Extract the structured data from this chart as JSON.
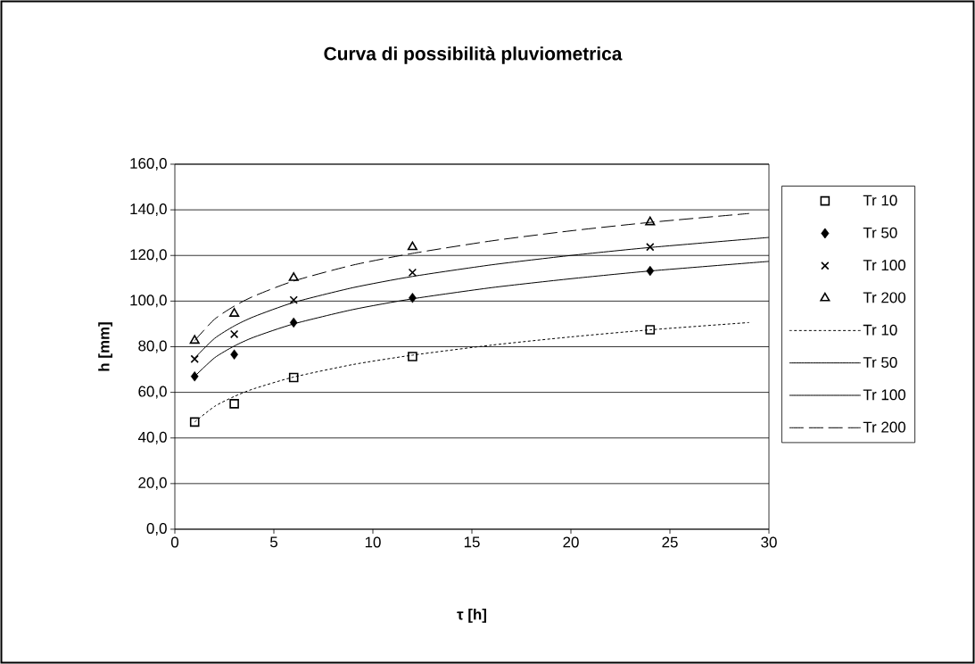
{
  "chart_data": {
    "type": "scatter",
    "title": "Curva di possibilità pluviometrica",
    "xlabel": "τ [h]",
    "ylabel": "h [mm]",
    "xlim": [
      0,
      30
    ],
    "ylim": [
      0,
      160
    ],
    "xticks": [
      0,
      5,
      10,
      15,
      20,
      25,
      30
    ],
    "yticks": [
      {
        "value": 0,
        "label": "0,0"
      },
      {
        "value": 20,
        "label": "20,0"
      },
      {
        "value": 40,
        "label": "40,0"
      },
      {
        "value": 60,
        "label": "60,0"
      },
      {
        "value": 80,
        "label": "80,0"
      },
      {
        "value": 100,
        "label": "100,0"
      },
      {
        "value": 120,
        "label": "120,0"
      },
      {
        "value": 140,
        "label": "140,0"
      },
      {
        "value": 160,
        "label": "160,0"
      }
    ],
    "grid": "y",
    "legend": "right",
    "series": [
      {
        "name": "Tr 10",
        "marker": "square",
        "color": "#000000",
        "x": [
          1,
          3,
          6,
          12,
          24
        ],
        "values": [
          47,
          55,
          66.5,
          75.7,
          87.4
        ]
      },
      {
        "name": "Tr 50",
        "marker": "diamond",
        "color": "#000000",
        "x": [
          1,
          3,
          6,
          12,
          24
        ],
        "values": [
          67,
          76.6,
          90.6,
          101.4,
          113.2
        ]
      },
      {
        "name": "Tr 100",
        "marker": "cross",
        "color": "#000000",
        "x": [
          1,
          3,
          6,
          12,
          24
        ],
        "values": [
          74.6,
          85.5,
          100.5,
          112.5,
          123.7
        ]
      },
      {
        "name": "Tr 200",
        "marker": "triangle",
        "color": "#000000",
        "x": [
          1,
          3,
          6,
          12,
          24
        ],
        "values": [
          82.7,
          94.5,
          110.2,
          123.7,
          134.6
        ]
      },
      {
        "name": "Tr 10",
        "type": "line",
        "line_style": "dotted",
        "color": "#000000",
        "x": [
          1,
          2,
          3,
          4,
          6,
          9,
          12,
          16,
          20,
          24,
          29
        ],
        "values": [
          47,
          53.8,
          58.2,
          61.6,
          66.7,
          72.2,
          76.3,
          80.7,
          84.3,
          87.4,
          90.6
        ]
      },
      {
        "name": "Tr 50",
        "type": "line",
        "line_style": "solid",
        "color": "#000000",
        "x": [
          1,
          2,
          3,
          4,
          6,
          9,
          12,
          16,
          20,
          24,
          30
        ],
        "values": [
          67,
          75.1,
          80.3,
          84.2,
          90,
          96.3,
          101,
          105.9,
          109.8,
          113.2,
          117.4
        ]
      },
      {
        "name": "Tr 100",
        "type": "line",
        "line_style": "solid",
        "color": "#000000",
        "x": [
          1,
          2,
          3,
          4,
          6,
          9,
          12,
          16,
          20,
          24,
          30
        ],
        "values": [
          75,
          83.6,
          89.1,
          93.2,
          99.4,
          105.9,
          110.8,
          115.9,
          120,
          123.5,
          127.9
        ]
      },
      {
        "name": "Tr 200",
        "type": "line",
        "line_style": "dashed",
        "color": "#000000",
        "x": [
          1,
          2,
          3,
          4,
          6,
          9,
          12,
          16,
          20,
          24,
          29
        ],
        "values": [
          82.7,
          92,
          97.8,
          102.2,
          108.8,
          115.8,
          120.9,
          126.4,
          130.8,
          134.5,
          138.4
        ]
      }
    ]
  }
}
